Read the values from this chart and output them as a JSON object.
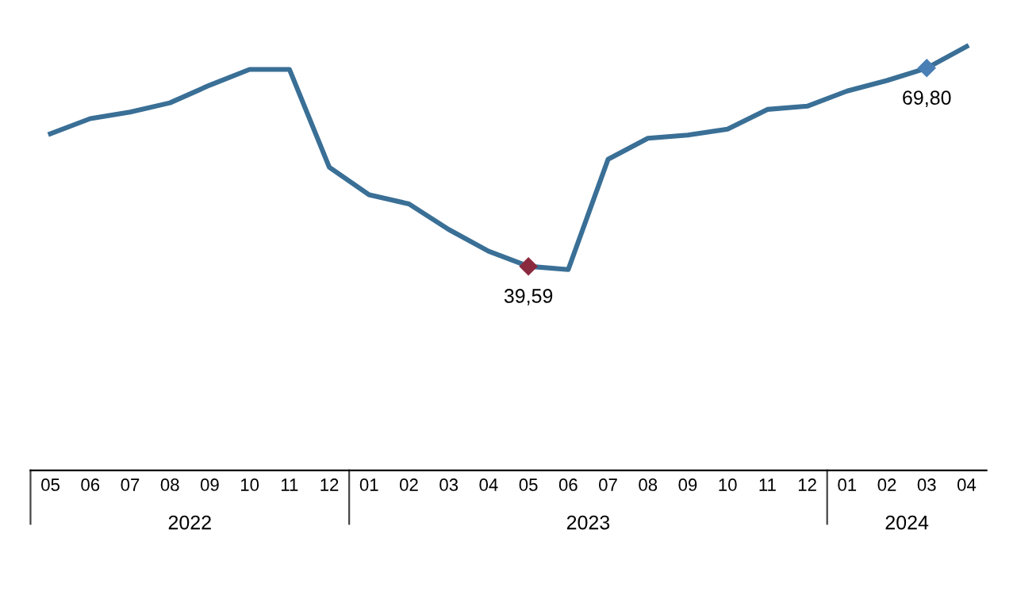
{
  "chart_data": {
    "type": "line",
    "categories": [
      "05",
      "06",
      "07",
      "08",
      "09",
      "10",
      "11",
      "12",
      "01",
      "02",
      "03",
      "04",
      "05",
      "06",
      "07",
      "08",
      "09",
      "10",
      "11",
      "12",
      "01",
      "02",
      "03",
      "04"
    ],
    "values": [
      59.8,
      62.1,
      63.1,
      64.5,
      67.2,
      69.6,
      69.6,
      54.7,
      50.5,
      49.1,
      45.2,
      41.9,
      39.59,
      39.1,
      55.9,
      59.1,
      59.6,
      60.5,
      63.5,
      64.0,
      66.3,
      67.9,
      69.8,
      73.1
    ],
    "value_labels": [
      null,
      null,
      null,
      null,
      null,
      null,
      null,
      null,
      null,
      null,
      null,
      null,
      "39,59",
      null,
      null,
      null,
      null,
      null,
      null,
      null,
      null,
      null,
      "69,80",
      null
    ],
    "colors": [
      null,
      null,
      null,
      null,
      null,
      null,
      null,
      null,
      null,
      null,
      null,
      null,
      "#8b2a3f",
      null,
      null,
      null,
      null,
      null,
      null,
      null,
      null,
      null,
      "#4a7fb5",
      null
    ],
    "color": "#3a6f96",
    "line_style": "solid",
    "grid": false,
    "legend": false,
    "annotations": [
      "2022",
      "2023",
      "2024"
    ]
  }
}
